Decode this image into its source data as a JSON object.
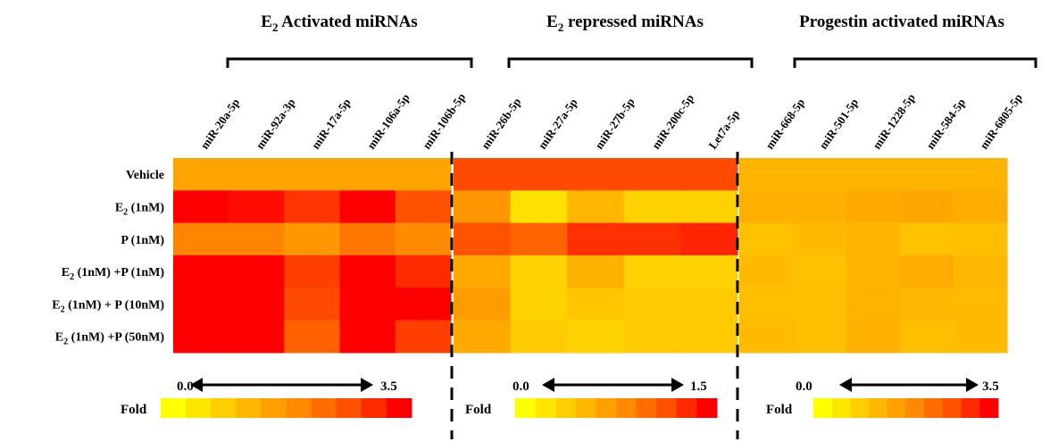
{
  "chart_data": {
    "type": "heatmap",
    "rows": [
      {
        "label": "Vehicle",
        "sub": "",
        "tail": ""
      },
      {
        "label": "E",
        "sub": "2",
        "tail": " (1nM)"
      },
      {
        "label": "P (1nM)",
        "sub": "",
        "tail": ""
      },
      {
        "label": "E",
        "sub": "2",
        "tail": " (1nM) +P (1nM)"
      },
      {
        "label": "E",
        "sub": "2",
        "tail": " (1nM) + P (10nM)"
      },
      {
        "label": "E",
        "sub": "2",
        "tail": " (1nM) +P (50nM)"
      }
    ],
    "groups": [
      {
        "title_main": "E",
        "title_sub": "2",
        "title_rest": "  Activated miRNAs",
        "columns": [
          "miR-20a-5p",
          "miR-92a-3p",
          "miR-17a-5p",
          "miR-106a-5p",
          "miR-106b-5p"
        ],
        "scale_min": 0,
        "scale_max": 3.5,
        "scale_min_label": "0.0",
        "scale_max_label": "3.5",
        "values": [
          [
            1.5,
            1.5,
            1.5,
            1.5,
            1.5
          ],
          [
            3.5,
            3.4,
            3.0,
            3.5,
            2.7
          ],
          [
            2.0,
            2.0,
            1.7,
            2.2,
            1.9
          ],
          [
            3.5,
            3.5,
            2.9,
            3.5,
            3.1
          ],
          [
            3.5,
            3.5,
            2.8,
            3.5,
            3.5
          ],
          [
            3.5,
            3.5,
            2.5,
            3.5,
            2.9
          ]
        ]
      },
      {
        "title_main": "E",
        "title_sub": "2",
        "title_rest": "  repressed  miRNAs",
        "columns": [
          "miR-26b-5p",
          "miR-27a-5p",
          "miR-27b-5p",
          "miR-200c-5p",
          "Let7a-5p"
        ],
        "scale_min": 0,
        "scale_max": 1.5,
        "scale_min_label": "0.0",
        "scale_max_label": "1.5",
        "values": [
          [
            1.2,
            1.2,
            1.2,
            1.2,
            1.2
          ],
          [
            0.75,
            0.2,
            0.5,
            0.3,
            0.3
          ],
          [
            1.15,
            1.05,
            1.3,
            1.3,
            1.35
          ],
          [
            0.6,
            0.3,
            0.55,
            0.3,
            0.3
          ],
          [
            0.7,
            0.3,
            0.4,
            0.35,
            0.35
          ],
          [
            0.6,
            0.35,
            0.3,
            0.35,
            0.35
          ]
        ]
      },
      {
        "title_main": "Progestin activated miRNAs",
        "title_sub": "",
        "title_rest": "",
        "columns": [
          "miR-668-5p",
          "miR-501-5p",
          "miR-1228-5p",
          "miR-584-5p",
          "miR-6805-5p"
        ],
        "scale_min": 0,
        "scale_max": 3.5,
        "scale_min_label": "0.0",
        "scale_max_label": "3.5",
        "values": [
          [
            1.2,
            1.2,
            1.2,
            1.2,
            1.2
          ],
          [
            1.3,
            1.3,
            1.4,
            1.45,
            1.35
          ],
          [
            1.0,
            1.1,
            1.2,
            1.0,
            1.05
          ],
          [
            1.1,
            1.0,
            1.2,
            1.35,
            1.15
          ],
          [
            1.05,
            1.05,
            1.25,
            1.15,
            1.1
          ],
          [
            1.1,
            1.05,
            1.3,
            1.05,
            1.1
          ]
        ]
      }
    ],
    "legend_label": "Fold",
    "colormap": [
      "#ffff00",
      "#ffd200",
      "#ffaa00",
      "#ff7f00",
      "#ff4a00",
      "#ff0000"
    ]
  }
}
